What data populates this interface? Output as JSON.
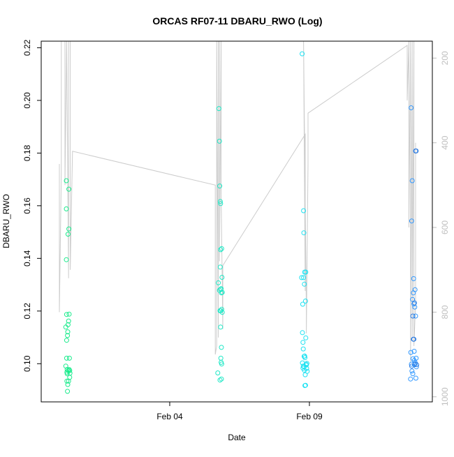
{
  "chart_data": {
    "type": "scatter",
    "title": "ORCAS RF07-11 DBARU_RWO (Log)",
    "xlabel": "Date",
    "ylabel": "DBARU_RWO",
    "x_ticks": [
      "Feb 04",
      "Feb 09"
    ],
    "x_tick_days": [
      4,
      9
    ],
    "xlim_days": [
      -0.6,
      13.4
    ],
    "ylim": [
      0.0855,
      0.2225
    ],
    "y_ticks": [
      0.1,
      0.12,
      0.14,
      0.16,
      0.18,
      0.2,
      0.22
    ],
    "y2_ticks": [
      200,
      400,
      600,
      800,
      1000
    ],
    "y2lim": [
      1012,
      160
    ],
    "grid": false,
    "legend": "none",
    "colors": {
      "flight1": "#1aeb8c",
      "flight2": "#1fe8c6",
      "flight3": "#1ee2f2",
      "flight4": "#3399ff",
      "flight4b": "#2f7de1",
      "pressure_trace": "#cccccc"
    },
    "series": [
      {
        "color_key": "flight1",
        "x": [
          0.28,
          0.28,
          0.3,
          0.3,
          0.3,
          0.31,
          0.31,
          0.31,
          0.32,
          0.32,
          0.33,
          0.33,
          0.34,
          0.34,
          0.35,
          0.35,
          0.36,
          0.36,
          0.37,
          0.38,
          0.38,
          0.39,
          0.39,
          0.4,
          0.4,
          0.41,
          0.42,
          0.42,
          0.43
        ],
        "y": [
          0.1139,
          0.0991,
          0.1695,
          0.1588,
          0.1395,
          0.1187,
          0.1089,
          0.1021,
          0.0968,
          0.0934,
          0.0978,
          0.0962,
          0.1107,
          0.0895,
          0.1121,
          0.0921,
          0.1492,
          0.1148,
          0.0974,
          0.1162,
          0.0934,
          0.1512,
          0.1663,
          0.1188,
          0.0978,
          0.1021,
          0.0948,
          0.0974,
          0.0964
        ]
      },
      {
        "color_key": "flight2",
        "x": [
          5.72,
          5.74,
          5.76,
          5.78,
          5.78,
          5.79,
          5.8,
          5.8,
          5.81,
          5.81,
          5.82,
          5.82,
          5.82,
          5.83,
          5.83,
          5.83,
          5.84,
          5.84,
          5.85,
          5.85,
          5.85,
          5.86,
          5.86,
          5.86,
          5.87,
          5.88,
          5.88
        ],
        "y": [
          0.0965,
          0.1307,
          0.1969,
          0.1845,
          0.1279,
          0.1675,
          0.1201,
          0.0938,
          0.1616,
          0.1367,
          0.1608,
          0.1433,
          0.1139,
          0.1201,
          0.1021,
          0.1282,
          0.1285,
          0.1005,
          0.1269,
          0.1062,
          0.0942,
          0.1437,
          0.1207,
          0.0999,
          0.1328,
          0.1271,
          0.1195
        ]
      },
      {
        "color_key": "flight3",
        "x": [
          8.72,
          8.74,
          8.75,
          8.75,
          8.76,
          8.77,
          8.77,
          8.78,
          8.78,
          8.79,
          8.79,
          8.8,
          8.81,
          8.81,
          8.82,
          8.82,
          8.83,
          8.83,
          8.84,
          8.84,
          8.85,
          8.86,
          8.86,
          8.87,
          8.87,
          8.88,
          8.89,
          8.9,
          8.91,
          8.92
        ],
        "y": [
          0.1327,
          0.2177,
          0.1118,
          0.1003,
          0.1226,
          0.0983,
          0.1081,
          0.1056,
          0.0991,
          0.1581,
          0.1327,
          0.1497,
          0.0988,
          0.1028,
          0.0975,
          0.1302,
          0.1029,
          0.1348,
          0.0917,
          0.1023,
          0.0958,
          0.1238,
          0.0918,
          0.1098,
          0.1348,
          0.0998,
          0.0995,
          0.0982,
          0.1001,
          0.0971
        ]
      },
      {
        "color_key": "flight4",
        "x": [
          12.62,
          12.63,
          12.64,
          12.65,
          12.66,
          12.67,
          12.68,
          12.69,
          12.7,
          12.71,
          12.72,
          12.73,
          12.74,
          12.75,
          12.75,
          12.76,
          12.77,
          12.78,
          12.79,
          12.8,
          12.81,
          12.82,
          12.83
        ],
        "y": [
          0.0942,
          0.1043,
          0.1972,
          0.0998,
          0.1542,
          0.0972,
          0.1695,
          0.1244,
          0.0962,
          0.1019,
          0.1269,
          0.1323,
          0.1227,
          0.1047,
          0.1012,
          0.0996,
          0.1215,
          0.1281,
          0.1003,
          0.1181,
          0.0945,
          0.1021,
          0.0988
        ]
      },
      {
        "color_key": "flight4b",
        "x": [
          12.66,
          12.7,
          12.72,
          12.74,
          12.76,
          12.78,
          12.8,
          12.82,
          12.84
        ],
        "y": [
          0.0991,
          0.1181,
          0.1093,
          0.1093,
          0.1231,
          0.0999,
          0.1808,
          0.1808,
          0.0996
        ]
      }
    ],
    "pressure_trace": {
      "y_axis": "right",
      "x": [
        0.05,
        0.05,
        0.12,
        0.12,
        0.25,
        0.25,
        0.31,
        0.31,
        0.38,
        0.38,
        0.44,
        0.44,
        0.52,
        5.63,
        5.63,
        5.68,
        5.68,
        5.74,
        5.74,
        5.78,
        5.78,
        5.84,
        5.84,
        5.9,
        5.9,
        8.85,
        8.85,
        8.79,
        8.79,
        8.89,
        8.89,
        8.95,
        8.95,
        12.5,
        12.5,
        12.56,
        12.56,
        12.62,
        12.62,
        12.68,
        12.68,
        12.74,
        12.74,
        12.8,
        12.8
      ],
      "y": [
        450,
        800,
        470,
        160,
        160,
        500,
        160,
        160,
        720,
        160,
        160,
        700,
        420,
        500,
        900,
        880,
        160,
        860,
        160,
        160,
        680,
        160,
        520,
        840,
        690,
        380,
        750,
        160,
        160,
        800,
        850,
        450,
        330,
        170,
        300,
        160,
        600,
        160,
        920,
        160,
        860,
        160,
        880,
        780,
        400
      ]
    }
  }
}
